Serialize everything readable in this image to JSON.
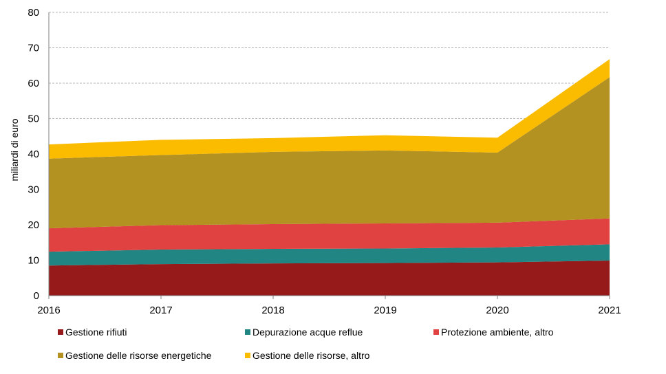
{
  "chart_data": {
    "type": "area",
    "stacked": true,
    "x": [
      "2016",
      "2017",
      "2018",
      "2019",
      "2020",
      "2021"
    ],
    "ylabel": "miliardi di euro",
    "ylim": [
      0,
      80
    ],
    "yticks": [
      "0",
      "10",
      "20",
      "30",
      "40",
      "50",
      "60",
      "70",
      "80"
    ],
    "grid": true,
    "legend_position": "bottom",
    "series": [
      {
        "name": "Gestione rifiuti",
        "color": "#961a1a",
        "values": [
          8.5,
          8.9,
          9.1,
          9.2,
          9.4,
          9.9
        ]
      },
      {
        "name": "Depurazione acque reflue",
        "color": "#218683",
        "values": [
          3.9,
          4.1,
          4.1,
          4.1,
          4.2,
          4.6
        ]
      },
      {
        "name": "Protezione ambiente, altro",
        "color": "#e04141",
        "values": [
          6.6,
          6.9,
          7.0,
          7.1,
          7.0,
          7.3
        ]
      },
      {
        "name": "Gestione delle risorse energetiche",
        "color": "#b39222",
        "values": [
          19.7,
          19.8,
          20.4,
          20.6,
          19.8,
          39.9
        ]
      },
      {
        "name": "Gestione delle risorse, altro",
        "color": "#fbbc00",
        "values": [
          4.0,
          4.3,
          3.9,
          4.3,
          4.2,
          5.1
        ]
      }
    ]
  }
}
